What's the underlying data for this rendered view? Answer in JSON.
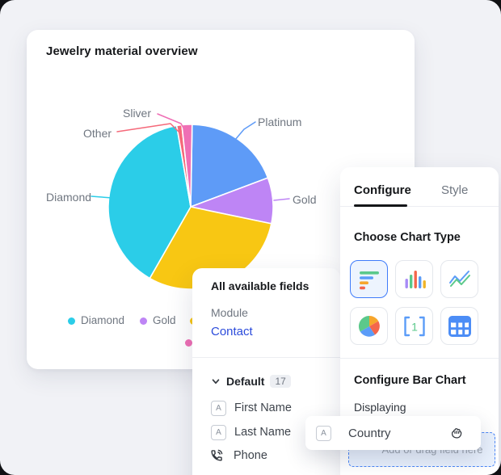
{
  "chart_card": {
    "title": "Jewelry material overview"
  },
  "chart_data": {
    "type": "pie",
    "title": "Jewelry material overview",
    "start_angle_deg": 1,
    "slices": [
      {
        "label": "Platinum",
        "value": 19,
        "color": "#5E9BF7"
      },
      {
        "label": "Gold",
        "value": 9,
        "color": "#BE85F5"
      },
      {
        "label": "",
        "value": 30,
        "color": "#F8C713"
      },
      {
        "label": "Diamond",
        "value": 39,
        "color": "#2BCDE8"
      },
      {
        "label": "Other",
        "value": 1,
        "color": "#F5697A"
      },
      {
        "label": "Sliver",
        "value": 2,
        "color": "#EF6FB5"
      }
    ],
    "legend_visible": [
      {
        "label": "Diamond",
        "color": "#2BCDE8"
      },
      {
        "label": "Gold",
        "color": "#BE85F5"
      },
      {
        "label": "",
        "color": "#F8C713"
      },
      {
        "label": "",
        "color": "#EF6FB5"
      }
    ],
    "legend_position": "bottom"
  },
  "fields_panel": {
    "title": "All available fields",
    "module_label": "Module",
    "module_value": "Contact",
    "group": {
      "name": "Default",
      "count": "17"
    },
    "fields": [
      {
        "icon": "text-field-icon",
        "label": "First Name"
      },
      {
        "icon": "text-field-icon",
        "label": "Last Name"
      },
      {
        "icon": "phone-icon",
        "label": "Phone"
      }
    ]
  },
  "configure_panel": {
    "tabs": [
      {
        "label": "Configure",
        "active": true
      },
      {
        "label": "Style",
        "active": false
      }
    ],
    "choose_title": "Choose Chart Type",
    "chart_types": [
      "horizontal-bar",
      "column",
      "line",
      "pie",
      "number",
      "table"
    ],
    "selected_chart_type": "horizontal-bar",
    "bar_config_title": "Configure Bar Chart",
    "displaying_label": "Displaying",
    "drop_zone_text": "Add or drag field here"
  },
  "drag_item": {
    "label": "Country"
  },
  "colors": {
    "accent_blue": "#3E7BFA",
    "link_blue": "#2B4BDB",
    "canvas_bg": "#F1F2F6",
    "backdrop": "#101114"
  }
}
